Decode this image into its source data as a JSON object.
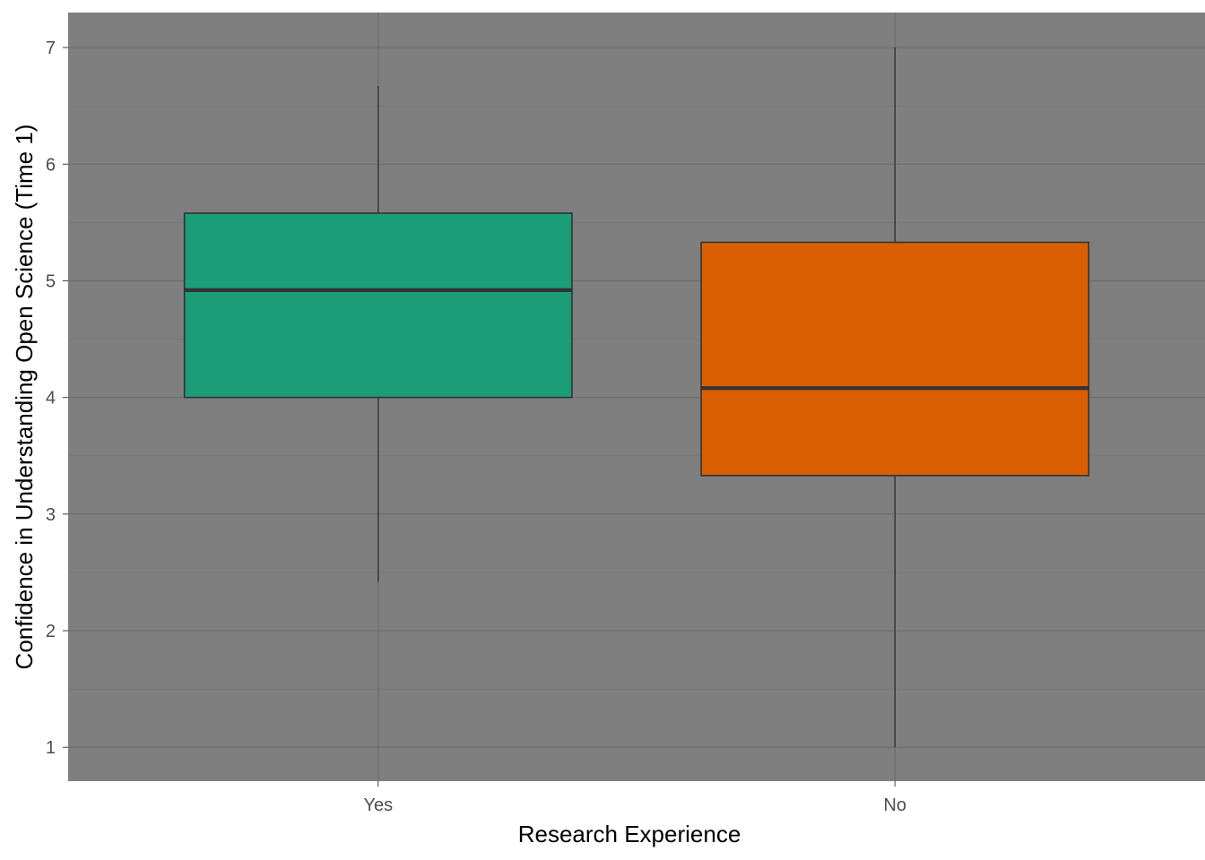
{
  "chart_data": {
    "type": "boxplot",
    "title": "",
    "xlabel": "Research Experience",
    "ylabel": "Confidence in Understanding Open Science (Time 1)",
    "ylim": [
      0.71,
      7.3
    ],
    "yticks": [
      1,
      2,
      3,
      4,
      5,
      6,
      7
    ],
    "grid": true,
    "legend": "none",
    "categories": [
      "Yes",
      "No"
    ],
    "boxes": [
      {
        "category": "Yes",
        "min": 2.42,
        "q1": 4.0,
        "median": 4.92,
        "q3": 5.58,
        "max": 6.67,
        "color": "#1b9e77"
      },
      {
        "category": "No",
        "min": 1.0,
        "q1": 3.33,
        "median": 4.08,
        "q3": 5.33,
        "max": 7.0,
        "color": "#d95f02"
      }
    ]
  }
}
